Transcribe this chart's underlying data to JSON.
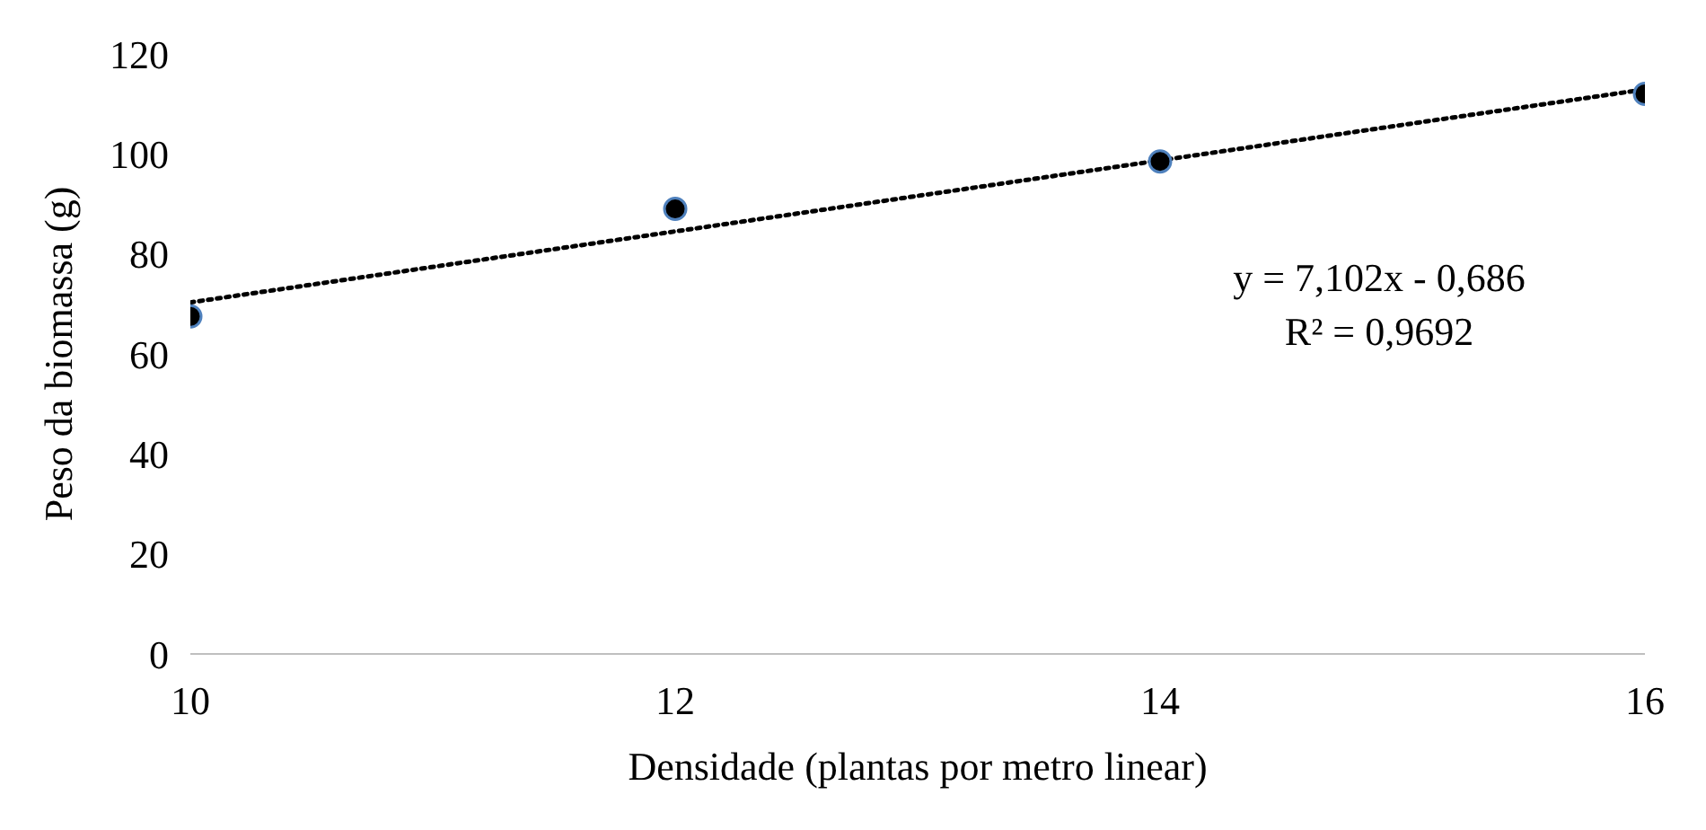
{
  "chart_data": {
    "type": "scatter",
    "xlabel": "Densidade (plantas por metro linear)",
    "ylabel": "Peso da biomassa (g)",
    "series": [
      {
        "color": "#000000",
        "x": [
          10,
          12,
          14,
          16
        ],
        "values": [
          67.5,
          89,
          98.5,
          112
        ]
      },
      {
        "type": "line",
        "color": "#000000",
        "line_style": "dotted",
        "marker": "none",
        "x": [
          10,
          16
        ],
        "values": [
          70.3,
          112.9
        ]
      }
    ],
    "marker": "circle",
    "xlim": [
      10,
      16
    ],
    "xticks": [
      10,
      12,
      14,
      16
    ],
    "ylim": [
      0,
      120
    ],
    "yticks": [
      0,
      20,
      40,
      60,
      80,
      100,
      120
    ],
    "grid": false,
    "legend": false,
    "annotations": [
      "y = 7,102x - 0,686",
      "R² = 0,9692"
    ]
  }
}
